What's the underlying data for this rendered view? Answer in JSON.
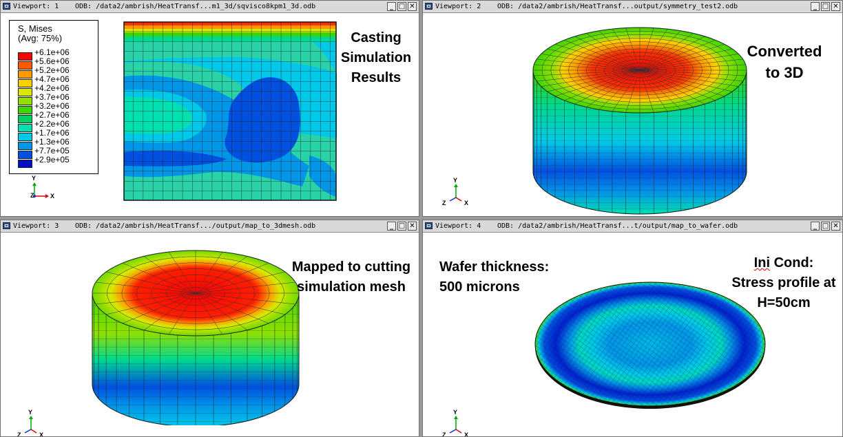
{
  "viewports": [
    {
      "name": "Viewport: 1",
      "odb": "ODB: /data2/ambrish/HeatTransf...m1_3d/sqvisco8kpm1_3d.odb"
    },
    {
      "name": "Viewport: 2",
      "odb": "ODB: /data2/ambrish/HeatTransf...output/symmetry_test2.odb"
    },
    {
      "name": "Viewport: 3",
      "odb": "ODB: /data2/ambrish/HeatTransf.../output/map_to_3dmesh.odb"
    },
    {
      "name": "Viewport: 4",
      "odb": "ODB: /data2/ambrish/HeatTransf...t/output/map_to_wafer.odb"
    }
  ],
  "window_buttons": {
    "minimize": "_",
    "maximize": "□",
    "close": "✕"
  },
  "legend": {
    "title": "S, Mises",
    "subtitle": "(Avg: 75%)",
    "entries": [
      {
        "label": "+6.1e+06",
        "color": "#ff0000"
      },
      {
        "label": "+5.6e+06",
        "color": "#ff5a00"
      },
      {
        "label": "+5.2e+06",
        "color": "#ff9a00"
      },
      {
        "label": "+4.7e+06",
        "color": "#ffd000"
      },
      {
        "label": "+4.2e+06",
        "color": "#d8e800"
      },
      {
        "label": "+3.7e+06",
        "color": "#8ee000"
      },
      {
        "label": "+3.2e+06",
        "color": "#3ed400"
      },
      {
        "label": "+2.7e+06",
        "color": "#00d060"
      },
      {
        "label": "+2.2e+06",
        "color": "#00e0b0"
      },
      {
        "label": "+1.7e+06",
        "color": "#00c8e8"
      },
      {
        "label": "+1.3e+06",
        "color": "#0096e8"
      },
      {
        "label": "+7.7e+05",
        "color": "#0050e0"
      },
      {
        "label": "+2.9e+05",
        "color": "#0010c8"
      }
    ]
  },
  "triad_labels": {
    "y": "Y",
    "z": "Z",
    "x": "X"
  },
  "annotations": {
    "vp1": [
      "Casting",
      "Simulation",
      "Results"
    ],
    "vp2": [
      "Converted",
      "to 3D"
    ],
    "vp3": [
      "Mapped to cutting",
      "simulation mesh"
    ],
    "vp4_left": [
      "Wafer thickness:",
      "500 microns"
    ],
    "vp4_right": {
      "line1_a": "Ini",
      "line1_b": " Cond:",
      "line2": "Stress profile at",
      "line3": "H=50cm"
    }
  },
  "colors": {
    "red": "#ff0000",
    "orange": "#ff9a00",
    "yellow": "#d8e800",
    "green": "#3ed400",
    "teal": "#00e0b0",
    "cyan": "#00c8e8",
    "blue": "#0050e0",
    "dark_blue": "#0010c8"
  }
}
